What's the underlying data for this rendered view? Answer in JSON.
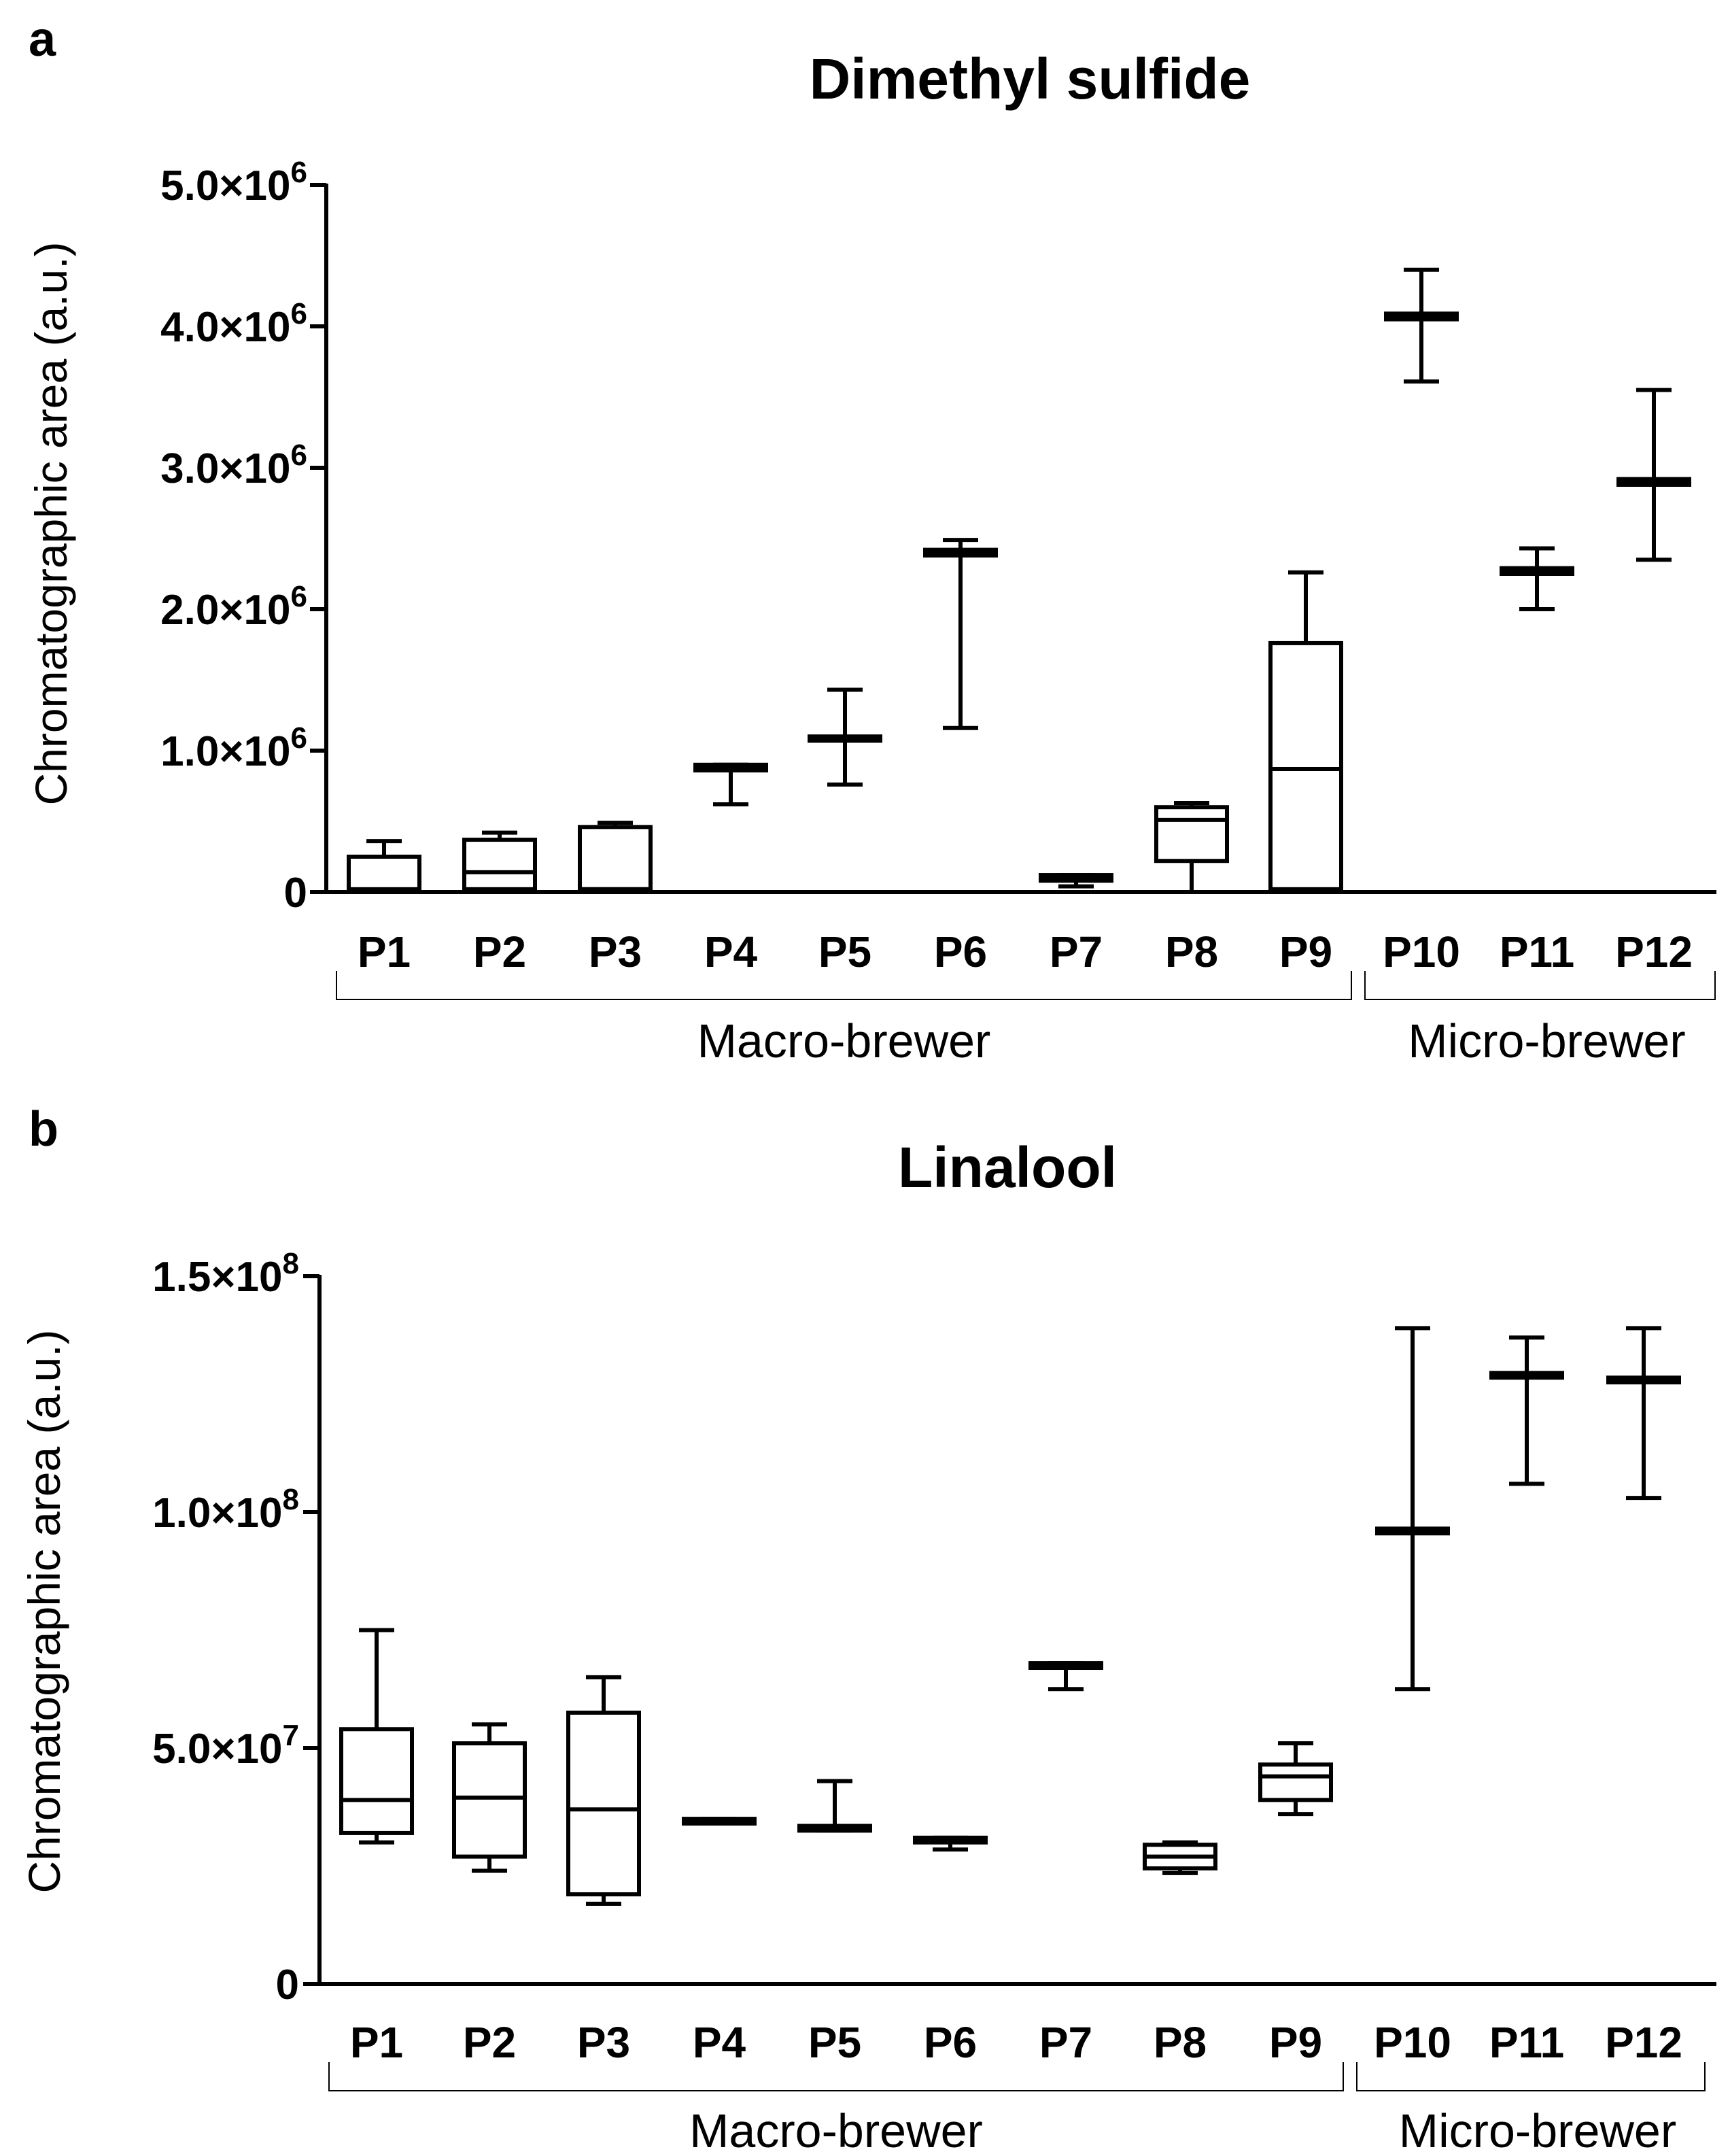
{
  "chart_data": [
    {
      "panel_label": "a",
      "type": "boxplot",
      "title": "Dimethyl sulfide",
      "ylabel": "Chromatographic area (a.u.)",
      "xlabel": "",
      "ylim": [
        0,
        5000000
      ],
      "yticks": [
        {
          "value": 0,
          "base": "0",
          "exp": ""
        },
        {
          "value": 1000000,
          "base": "1.0×10",
          "exp": "6"
        },
        {
          "value": 2000000,
          "base": "2.0×10",
          "exp": "6"
        },
        {
          "value": 3000000,
          "base": "3.0×10",
          "exp": "6"
        },
        {
          "value": 4000000,
          "base": "4.0×10",
          "exp": "6"
        },
        {
          "value": 5000000,
          "base": "5.0×10",
          "exp": "6"
        }
      ],
      "categories": [
        "P1",
        "P2",
        "P3",
        "P4",
        "P5",
        "P6",
        "P7",
        "P8",
        "P9",
        "P10",
        "P11",
        "P12"
      ],
      "boxes": [
        {
          "min": 0,
          "q1": 0,
          "median": 20000,
          "q3": 250000,
          "max": 360000
        },
        {
          "min": 0,
          "q1": 20000,
          "median": 140000,
          "q3": 370000,
          "max": 420000
        },
        {
          "min": 0,
          "q1": 20000,
          "median": 20000,
          "q3": 460000,
          "max": 490000
        },
        {
          "min": 620000,
          "q1": 860000,
          "median": 880000,
          "q3": 900000,
          "max": 900000
        },
        {
          "min": 760000,
          "q1": 1070000,
          "median": 1080000,
          "q3": 1100000,
          "max": 1430000
        },
        {
          "min": 1160000,
          "q1": 2380000,
          "median": 2400000,
          "q3": 2420000,
          "max": 2490000
        },
        {
          "min": 40000,
          "q1": 80000,
          "median": 100000,
          "q3": 120000,
          "max": 120000
        },
        {
          "min": 0,
          "q1": 220000,
          "median": 510000,
          "q3": 600000,
          "max": 630000
        },
        {
          "min": 0,
          "q1": 20000,
          "median": 870000,
          "q3": 1760000,
          "max": 2260000
        },
        {
          "min": 3610000,
          "q1": 4050000,
          "median": 4070000,
          "q3": 4090000,
          "max": 4400000
        },
        {
          "min": 2000000,
          "q1": 2250000,
          "median": 2270000,
          "q3": 2290000,
          "max": 2430000
        },
        {
          "min": 2350000,
          "q1": 2880000,
          "median": 2900000,
          "q3": 2920000,
          "max": 3550000
        }
      ],
      "groups": [
        {
          "label": "Macro-brewer",
          "from": 0,
          "to": 8
        },
        {
          "label": "Micro-brewer",
          "from": 9,
          "to": 11
        }
      ]
    },
    {
      "panel_label": "b",
      "type": "boxplot",
      "title": "Linalool",
      "ylabel": "Chromatographic area (a.u.)",
      "xlabel": "",
      "ylim": [
        0,
        150000000
      ],
      "yticks": [
        {
          "value": 0,
          "base": "0",
          "exp": ""
        },
        {
          "value": 50000000,
          "base": "5.0×10",
          "exp": "7"
        },
        {
          "value": 100000000,
          "base": "1.0×10",
          "exp": "8"
        },
        {
          "value": 150000000,
          "base": "1.5×10",
          "exp": "8"
        }
      ],
      "categories": [
        "P1",
        "P2",
        "P3",
        "P4",
        "P5",
        "P6",
        "P7",
        "P8",
        "P9",
        "P10",
        "P11",
        "P12"
      ],
      "boxes": [
        {
          "min": 30000000,
          "q1": 32000000,
          "median": 39000000,
          "q3": 54000000,
          "max": 75000000
        },
        {
          "min": 24000000,
          "q1": 27000000,
          "median": 39500000,
          "q3": 51000000,
          "max": 55000000
        },
        {
          "min": 17000000,
          "q1": 19000000,
          "median": 37000000,
          "q3": 57500000,
          "max": 65000000
        },
        {
          "min": 34000000,
          "q1": 34000000,
          "median": 34500000,
          "q3": 35000000,
          "max": 35000000
        },
        {
          "min": 32500000,
          "q1": 32500000,
          "median": 33000000,
          "q3": 33500000,
          "max": 43000000
        },
        {
          "min": 28500000,
          "q1": 30000000,
          "median": 30500000,
          "q3": 31000000,
          "max": 31000000
        },
        {
          "min": 62500000,
          "q1": 67000000,
          "median": 67500000,
          "q3": 68000000,
          "max": 68000000
        },
        {
          "min": 23500000,
          "q1": 24500000,
          "median": 27000000,
          "q3": 29500000,
          "max": 30000000
        },
        {
          "min": 36000000,
          "q1": 39000000,
          "median": 44000000,
          "q3": 46500000,
          "max": 51000000
        },
        {
          "min": 62500000,
          "q1": 95500000,
          "median": 96000000,
          "q3": 96500000,
          "max": 139000000
        },
        {
          "min": 106000000,
          "q1": 128500000,
          "median": 129000000,
          "q3": 129500000,
          "max": 137000000
        },
        {
          "min": 103000000,
          "q1": 127500000,
          "median": 128000000,
          "q3": 128500000,
          "max": 139000000
        }
      ],
      "groups": [
        {
          "label": "Macro-brewer",
          "from": 0,
          "to": 8
        },
        {
          "label": "Micro-brewer",
          "from": 9,
          "to": 11
        }
      ]
    }
  ]
}
